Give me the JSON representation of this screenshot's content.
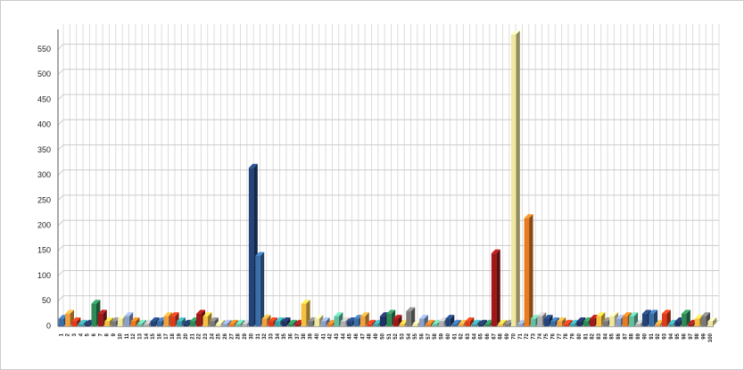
{
  "chart_data": {
    "type": "bar3d",
    "categories": [
      "1",
      "2",
      "3",
      "4",
      "5",
      "6",
      "7",
      "8",
      "9",
      "10",
      "11",
      "12",
      "13",
      "14",
      "15",
      "16",
      "17",
      "18",
      "19",
      "20",
      "21",
      "22",
      "23",
      "24",
      "25",
      "26",
      "27",
      "28",
      "29",
      "30",
      "31",
      "32",
      "33",
      "34",
      "35",
      "36",
      "37",
      "38",
      "39",
      "40",
      "41",
      "42",
      "43",
      "44",
      "45",
      "46",
      "47",
      "48",
      "49",
      "50",
      "51",
      "52",
      "53",
      "54",
      "55",
      "56",
      "57",
      "58",
      "59",
      "60",
      "61",
      "62",
      "63",
      "64",
      "65",
      "66",
      "67",
      "68",
      "69",
      "70",
      "71",
      "72",
      "73",
      "74",
      "75",
      "76",
      "77",
      "78",
      "79",
      "80",
      "81",
      "82",
      "83",
      "84",
      "85",
      "86",
      "87",
      "88",
      "89",
      "90",
      "91",
      "92",
      "93",
      "94",
      "95",
      "96",
      "97",
      "98",
      "99",
      "100"
    ],
    "values": [
      15,
      25,
      10,
      5,
      5,
      45,
      25,
      10,
      10,
      15,
      20,
      10,
      5,
      5,
      10,
      10,
      20,
      20,
      10,
      5,
      10,
      25,
      20,
      10,
      5,
      5,
      5,
      5,
      5,
      315,
      140,
      15,
      10,
      10,
      10,
      5,
      5,
      45,
      10,
      15,
      10,
      5,
      20,
      10,
      10,
      15,
      20,
      5,
      5,
      20,
      25,
      15,
      5,
      30,
      5,
      15,
      5,
      5,
      10,
      15,
      5,
      5,
      10,
      5,
      5,
      5,
      145,
      5,
      5,
      580,
      5,
      215,
      15,
      20,
      15,
      10,
      10,
      5,
      5,
      10,
      10,
      15,
      20,
      10,
      20,
      15,
      20,
      20,
      5,
      25,
      25,
      5,
      25,
      5,
      10,
      25,
      5,
      15,
      20,
      10
    ],
    "palette": [
      "#3a6ea8",
      "#f2a03d",
      "#e03a1a",
      "#3aa0a8",
      "#1f3266",
      "#2e8b57",
      "#a01818",
      "#f5c040",
      "#7a7a7a",
      "#f0e8a0",
      "#8aa0c8",
      "#e87a20",
      "#60c0a0",
      "#b0b0b0",
      "#22447a"
    ],
    "ylim": [
      0,
      590
    ],
    "yticks": [
      0,
      50,
      100,
      150,
      200,
      250,
      300,
      350,
      400,
      450,
      500,
      550
    ],
    "grid": true
  }
}
